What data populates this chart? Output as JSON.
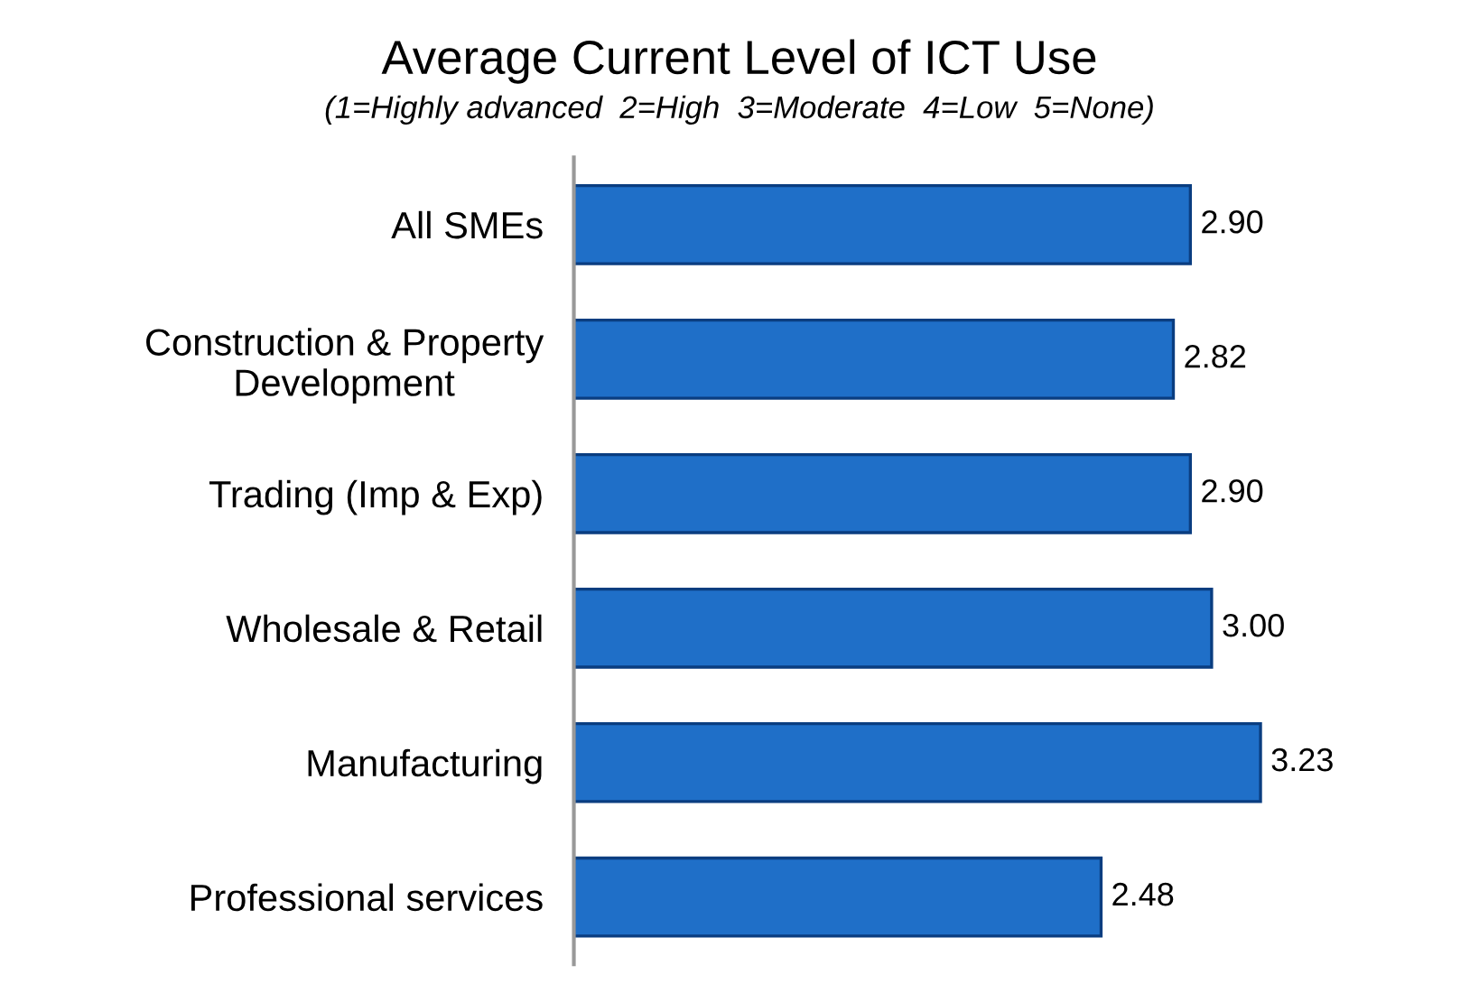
{
  "chart_data": {
    "type": "bar",
    "orientation": "horizontal",
    "title": "Average Current Level of ICT Use",
    "subtitle": "(1=Highly advanced  2=High  3=Moderate  4=Low  5=None)",
    "categories": [
      "All SMEs",
      "Construction & Property\nDevelopment",
      "Trading (Imp & Exp)",
      "Wholesale & Retail",
      "Manufacturing",
      "Professional services"
    ],
    "values": [
      2.9,
      2.82,
      2.9,
      3.0,
      3.23,
      2.48
    ],
    "value_labels": [
      "2.90",
      "2.82",
      "2.90",
      "3.00",
      "3.23",
      "2.48"
    ],
    "color": "#1f6fc8",
    "grid": false,
    "legend": false
  }
}
